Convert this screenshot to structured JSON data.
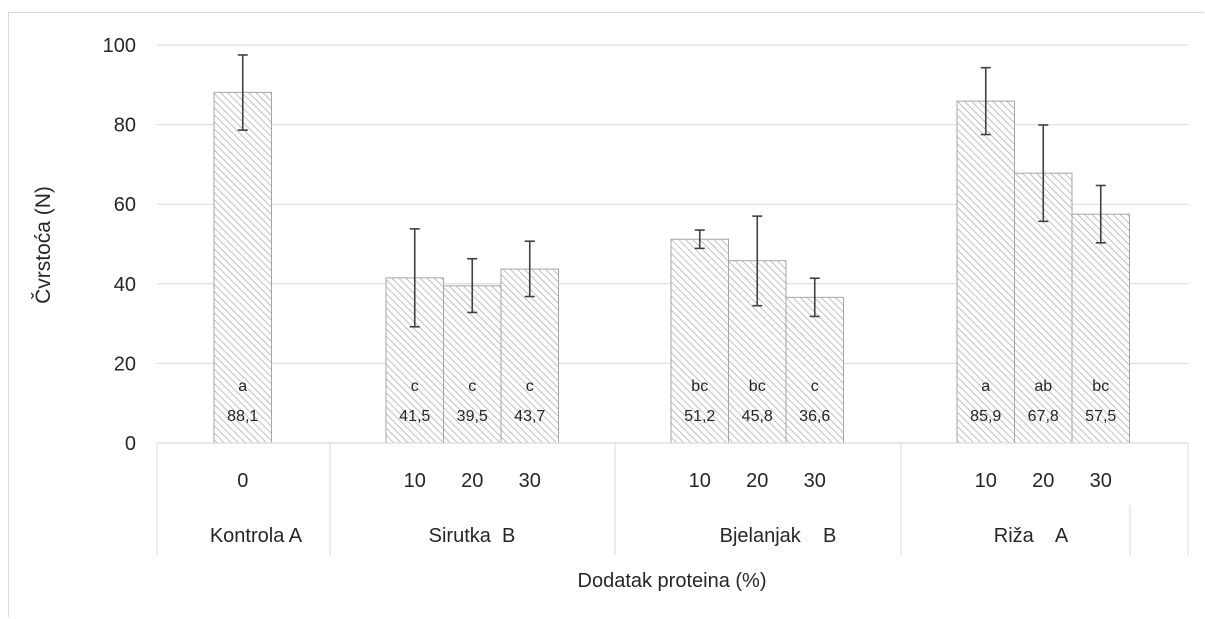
{
  "chart_data": {
    "type": "bar",
    "xlabel": "Dodatak proteina (%)",
    "ylabel": "Čvrstoća (N)",
    "ylim": [
      0,
      100
    ],
    "y_ticks": [
      "0",
      "20",
      "40",
      "60",
      "80",
      "100"
    ],
    "grid": true,
    "groups": [
      {
        "label": "Kontrola A",
        "bars": [
          {
            "level": "0",
            "value": 88.1,
            "value_label": "88,1",
            "letter": "a",
            "err_low": 78.6,
            "err_high": 97.5
          }
        ]
      },
      {
        "label": "Sirutka  B",
        "bars": [
          {
            "level": "10",
            "value": 41.5,
            "value_label": "41,5",
            "letter": "c",
            "err_low": 29.2,
            "err_high": 53.8
          },
          {
            "level": "20",
            "value": 39.5,
            "value_label": "39,5",
            "letter": "c",
            "err_low": 32.8,
            "err_high": 46.3
          },
          {
            "level": "30",
            "value": 43.7,
            "value_label": "43,7",
            "letter": "c",
            "err_low": 36.8,
            "err_high": 50.7
          }
        ]
      },
      {
        "label": "Bjelanjak    B",
        "bars": [
          {
            "level": "10",
            "value": 51.2,
            "value_label": "51,2",
            "letter": "bc",
            "err_low": 48.9,
            "err_high": 53.5
          },
          {
            "level": "20",
            "value": 45.8,
            "value_label": "45,8",
            "letter": "bc",
            "err_low": 34.5,
            "err_high": 57.0
          },
          {
            "level": "30",
            "value": 36.6,
            "value_label": "36,6",
            "letter": "c",
            "err_low": 31.8,
            "err_high": 41.4
          }
        ]
      },
      {
        "label": "Riža    A",
        "bars": [
          {
            "level": "10",
            "value": 85.9,
            "value_label": "85,9",
            "letter": "a",
            "err_low": 77.5,
            "err_high": 94.3
          },
          {
            "level": "20",
            "value": 67.8,
            "value_label": "67,8",
            "letter": "ab",
            "err_low": 55.7,
            "err_high": 79.9
          },
          {
            "level": "30",
            "value": 57.5,
            "value_label": "57,5",
            "letter": "bc",
            "err_low": 50.3,
            "err_high": 64.7
          }
        ]
      }
    ],
    "colors": {
      "bar_fill": "#ffffff",
      "bar_hatch": "#a6a6a6",
      "bar_border": "#a6a6a6",
      "grid": "#d9d9d9",
      "error_bar": "#404040",
      "text": "#262626"
    }
  }
}
